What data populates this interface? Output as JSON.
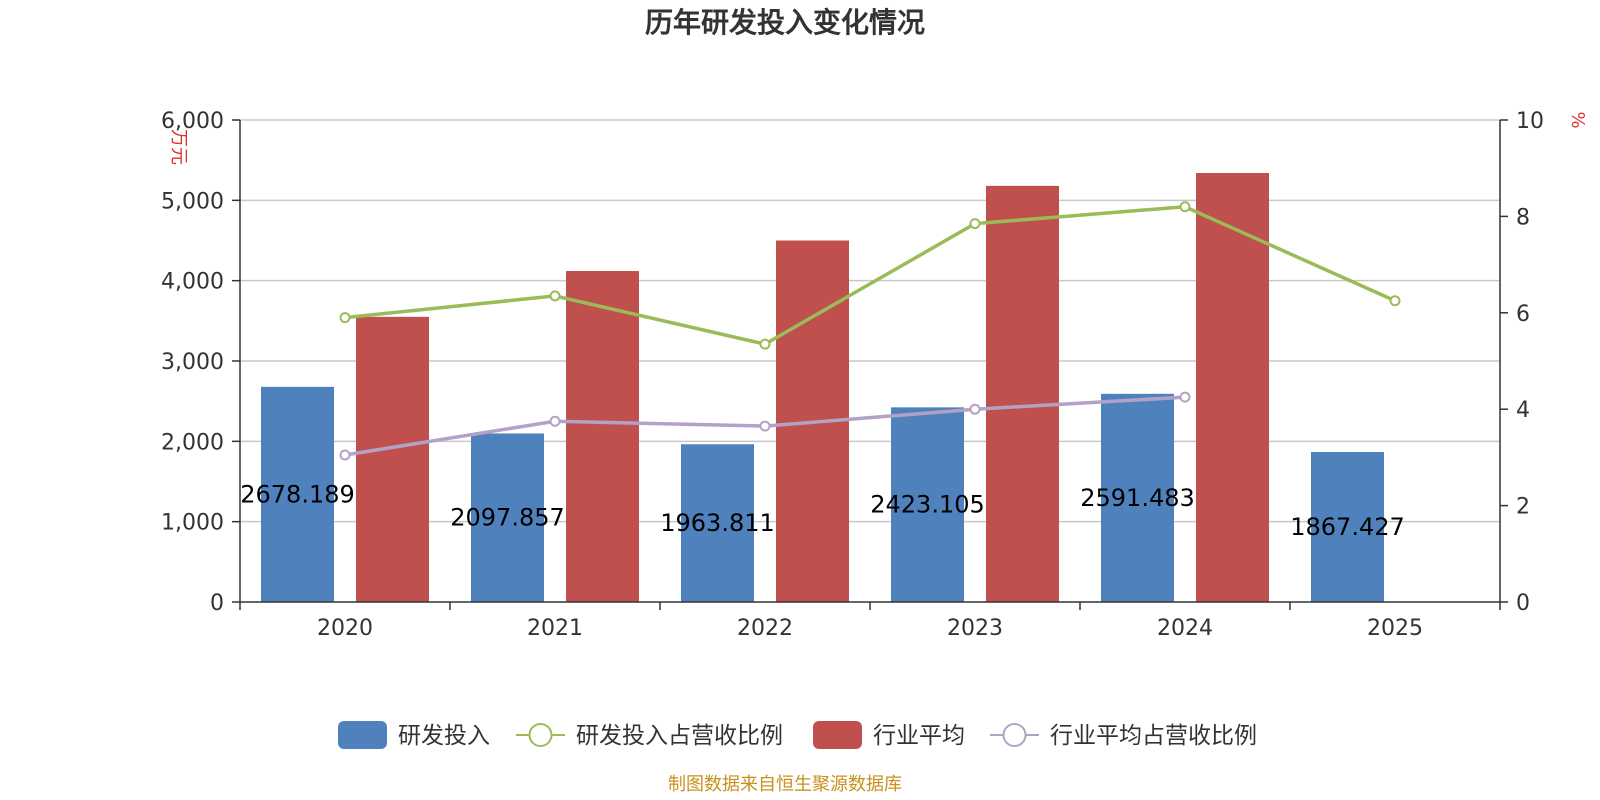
{
  "chart_data": {
    "type": "bar",
    "title": "历年研发投入变化情况",
    "categories": [
      "2020",
      "2021",
      "2022",
      "2023",
      "2024",
      "2025"
    ],
    "y_left": {
      "unit": "万元",
      "range": [
        0,
        6000
      ],
      "ticks": [
        "0",
        "1,000",
        "2,000",
        "3,000",
        "4,000",
        "5,000",
        "6,000"
      ]
    },
    "y_right": {
      "unit": "%",
      "range": [
        0,
        10
      ],
      "ticks": [
        "0",
        "2",
        "4",
        "6",
        "8",
        "10"
      ]
    },
    "grid": true,
    "legend_position": "bottom",
    "series": [
      {
        "name": "研发投入",
        "type": "bar",
        "axis": "left",
        "color": "#4f81bd",
        "values": [
          2678.189,
          2097.857,
          1963.811,
          2423.105,
          2591.483,
          1867.427
        ],
        "labels": [
          "2678.189",
          "2097.857",
          "1963.811",
          "2423.105",
          "2591.483",
          "1867.427"
        ]
      },
      {
        "name": "研发投入占营收比例",
        "type": "line",
        "axis": "right",
        "color": "#9bbb59",
        "values": [
          5.9,
          6.35,
          5.35,
          7.85,
          8.2,
          6.25
        ]
      },
      {
        "name": "行业平均",
        "type": "bar",
        "axis": "left",
        "color": "#c0504d",
        "values": [
          3550,
          4120,
          4500,
          5180,
          5340,
          null
        ]
      },
      {
        "name": "行业平均占营收比例",
        "type": "line",
        "axis": "right",
        "color": "#b3a2c7",
        "values": [
          3.05,
          3.75,
          3.65,
          4.0,
          4.25,
          null
        ]
      }
    ]
  },
  "footer": {
    "source": "制图数据来自恒生聚源数据库"
  }
}
